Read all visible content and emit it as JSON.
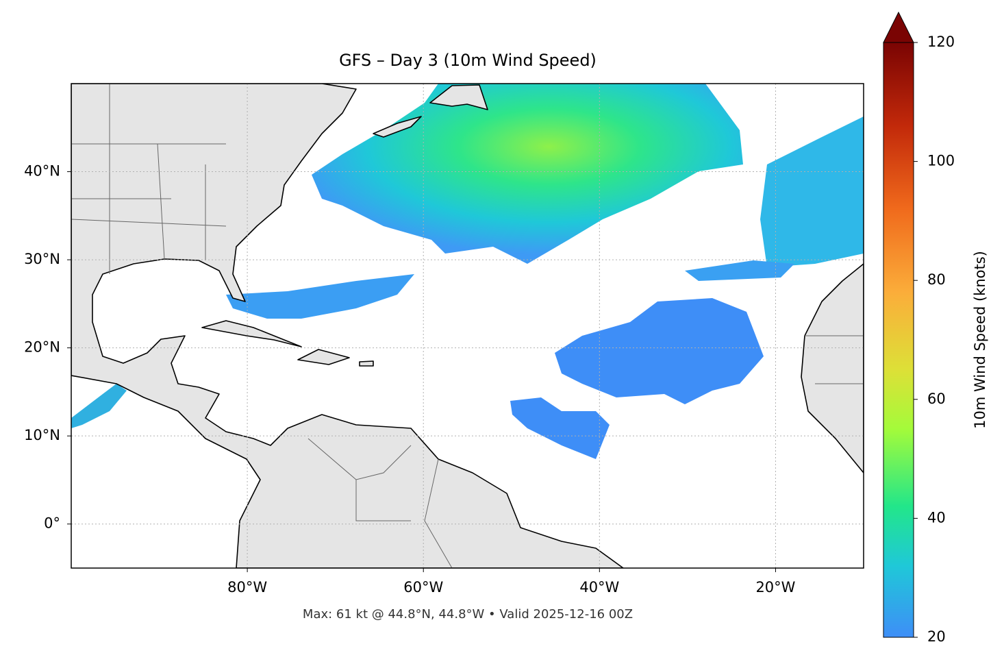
{
  "chart_data": {
    "type": "map",
    "title": "GFS – Day 3 (10m Wind Speed)",
    "xlim": [
      -100,
      -10
    ],
    "ylim": [
      -5,
      50
    ],
    "xticks": [
      {
        "value": -80,
        "label": "80°W"
      },
      {
        "value": -60,
        "label": "60°W"
      },
      {
        "value": -40,
        "label": "40°W"
      },
      {
        "value": -20,
        "label": "20°W"
      }
    ],
    "yticks": [
      {
        "value": 0,
        "label": "0°"
      },
      {
        "value": 10,
        "label": "10°N"
      },
      {
        "value": 20,
        "label": "20°N"
      },
      {
        "value": 30,
        "label": "30°N"
      },
      {
        "value": 40,
        "label": "40°N"
      }
    ],
    "grid": true,
    "colorbar": {
      "label": "10m Wind Speed (knots)",
      "lim": [
        20,
        120
      ],
      "ticks": [
        20,
        40,
        60,
        80,
        100,
        120
      ],
      "extend": "max"
    },
    "footnote": "Max: 61 kt @ 44.8°N, 44.8°W • Valid 2025-12-16 00Z"
  }
}
